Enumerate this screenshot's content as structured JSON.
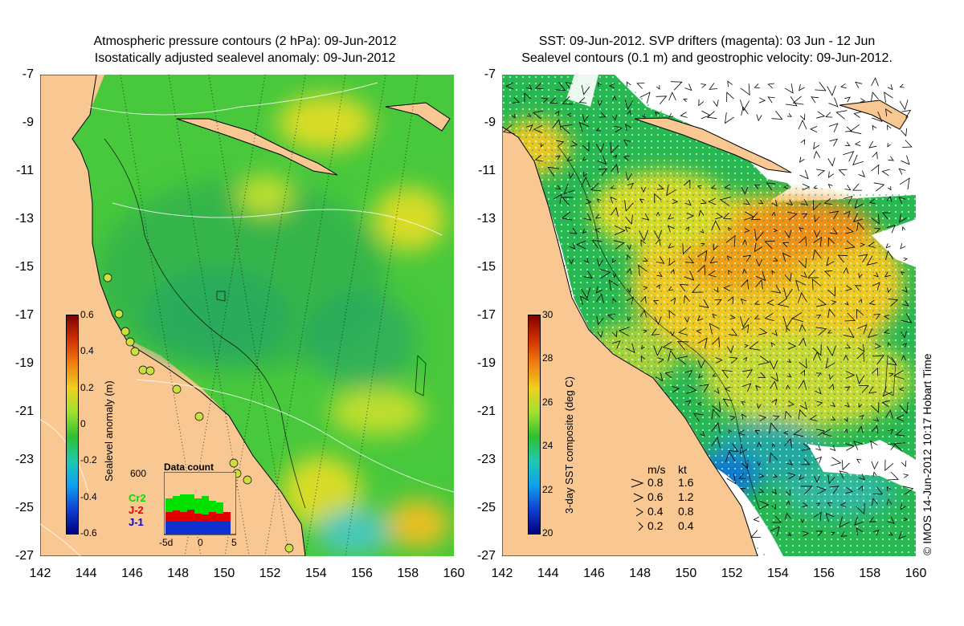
{
  "left_panel": {
    "title_line1": "Atmospheric pressure contours (2 hPa): 09-Jun-2012",
    "title_line2": "Isostatically adjusted sealevel anomaly: 09-Jun-2012",
    "colorbar": {
      "label": "Sealevel anomaly (m)",
      "ticks": [
        "0.6",
        "0.4",
        "0.2",
        "0",
        "-0.2",
        "-0.4",
        "-0.6"
      ],
      "range": [
        -0.6,
        0.6
      ]
    },
    "data_count": {
      "title": "Data count",
      "ymax_label": "600",
      "x_ticks": [
        "-5d",
        "0",
        "5"
      ],
      "series": [
        {
          "name": "Cr2",
          "color": "#00e000"
        },
        {
          "name": "J-2",
          "color": "#e00000"
        },
        {
          "name": "J-1",
          "color": "#0000e0"
        }
      ]
    }
  },
  "right_panel": {
    "title_line1": "SST: 09-Jun-2012. SVP drifters (magenta): 03 Jun - 12 Jun",
    "title_line2": "Sealevel contours (0.1 m) and geostrophic velocity: 09-Jun-2012.",
    "colorbar": {
      "label": "3-day SST composite (deg C)",
      "ticks": [
        "30",
        "28",
        "26",
        "24",
        "22",
        "20"
      ],
      "range": [
        20,
        30
      ]
    },
    "velocity_legend": {
      "header_ms": "m/s",
      "header_kt": "kt",
      "rows": [
        {
          "ms": "0.8",
          "kt": "1.6"
        },
        {
          "ms": "0.6",
          "kt": "1.2"
        },
        {
          "ms": "0.4",
          "kt": "0.8"
        },
        {
          "ms": "0.2",
          "kt": "0.4"
        }
      ]
    }
  },
  "axes": {
    "lat_ticks": [
      "-7",
      "-9",
      "-11",
      "-13",
      "-15",
      "-17",
      "-19",
      "-21",
      "-23",
      "-25",
      "-27"
    ],
    "lon_ticks": [
      "142",
      "144",
      "146",
      "148",
      "150",
      "152",
      "154",
      "156",
      "158",
      "160"
    ]
  },
  "credit": "© IMOS 14-Jun-2012 10:17 Hobart Time",
  "colors": {
    "land": "#f9c892",
    "anomaly_base": "#3ec83e",
    "sst_base": "#e8c020"
  }
}
